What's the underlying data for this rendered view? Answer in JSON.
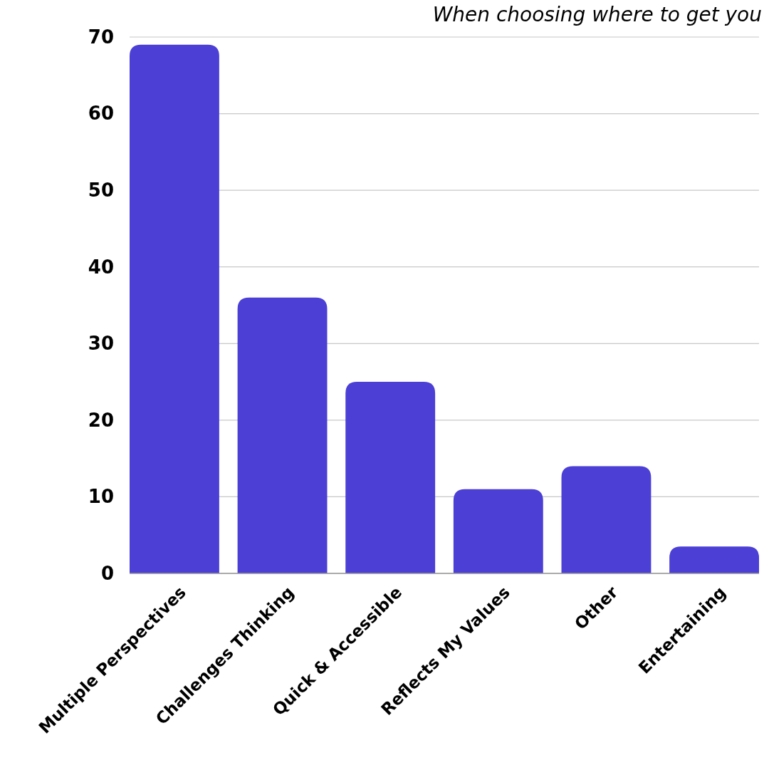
{
  "chart_data": {
    "type": "bar",
    "title": "When choosing where to get you",
    "categories": [
      "Multiple Perspectives",
      "Challenges Thinking",
      "Quick & Accessible",
      "Reflects My Values",
      "Other",
      "Entertaining"
    ],
    "values": [
      69,
      36,
      25,
      11,
      14,
      3.5
    ],
    "color": "#4b3fd5",
    "ylim": [
      0,
      70
    ],
    "yticks": [
      0,
      10,
      20,
      30,
      40,
      50,
      60,
      70
    ],
    "grid": "y"
  }
}
